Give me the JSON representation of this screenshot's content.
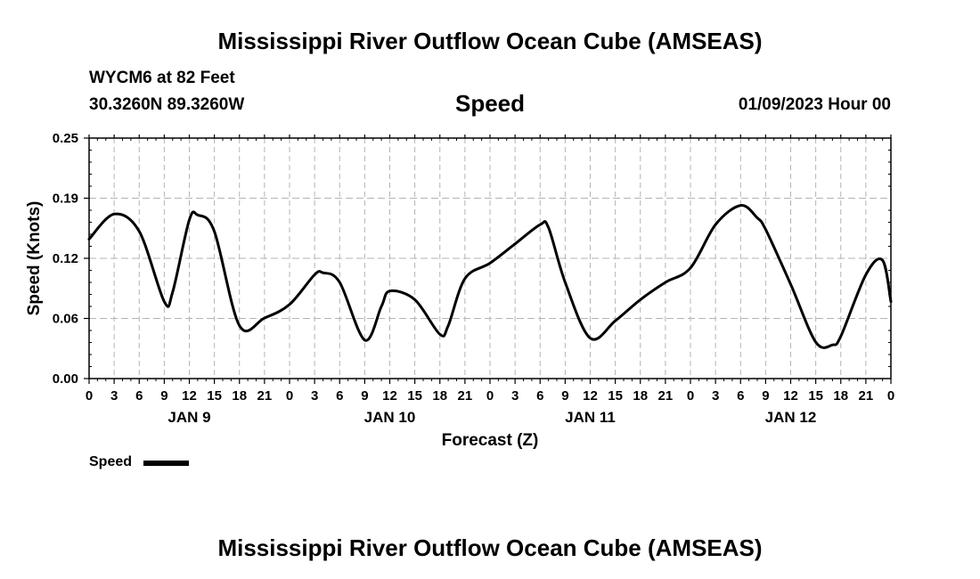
{
  "header": {
    "title": "Mississippi River Outflow Ocean Cube (AMSEAS)",
    "station": "WYCM6 at 82 Feet",
    "position": "30.3260N  89.3260W",
    "variable": "Speed",
    "datetime": "01/09/2023 Hour 00"
  },
  "footer": {
    "title": "Mississippi River Outflow Ocean Cube (AMSEAS)"
  },
  "legend": {
    "label": "Speed"
  },
  "chart_data": {
    "type": "line",
    "title": "Speed",
    "xlabel": "Forecast (Z)",
    "ylabel": "Speed (Knots)",
    "ylim": [
      0,
      0.25
    ],
    "xlim": [
      0,
      96
    ],
    "yticks": [
      "0.00",
      "0.06",
      "0.12",
      "0.19",
      "0.25"
    ],
    "ytick_values": [
      0,
      0.0625,
      0.125,
      0.1875,
      0.25
    ],
    "xtick_labels": [
      "0",
      "3",
      "6",
      "9",
      "12",
      "15",
      "18",
      "21",
      "0",
      "3",
      "6",
      "9",
      "12",
      "15",
      "18",
      "21",
      "0",
      "3",
      "6",
      "9",
      "12",
      "15",
      "18",
      "21",
      "0",
      "3",
      "6",
      "9",
      "12",
      "15",
      "18",
      "21",
      "0"
    ],
    "day_labels": [
      {
        "label": "JAN 9",
        "hour": 12
      },
      {
        "label": "JAN 10",
        "hour": 36
      },
      {
        "label": "JAN 11",
        "hour": 60
      },
      {
        "label": "JAN 12",
        "hour": 84
      }
    ],
    "grid": true,
    "series": [
      {
        "name": "Speed",
        "color": "#000000",
        "x": [
          0,
          3,
          6,
          9,
          10,
          12,
          13,
          15,
          18,
          21,
          24,
          27,
          28,
          30,
          33,
          35,
          36,
          39,
          42,
          43,
          45,
          48,
          51,
          54,
          55,
          57,
          60,
          63,
          66,
          69,
          72,
          75,
          78,
          80,
          81,
          84,
          87,
          89,
          90,
          93,
          95,
          96
        ],
        "y": [
          0.145,
          0.171,
          0.153,
          0.08,
          0.09,
          0.165,
          0.17,
          0.153,
          0.055,
          0.063,
          0.077,
          0.108,
          0.11,
          0.1,
          0.04,
          0.075,
          0.091,
          0.082,
          0.046,
          0.055,
          0.104,
          0.12,
          0.14,
          0.16,
          0.157,
          0.1,
          0.042,
          0.06,
          0.082,
          0.1,
          0.115,
          0.16,
          0.18,
          0.167,
          0.155,
          0.098,
          0.038,
          0.035,
          0.044,
          0.108,
          0.123,
          0.08
        ]
      }
    ]
  }
}
